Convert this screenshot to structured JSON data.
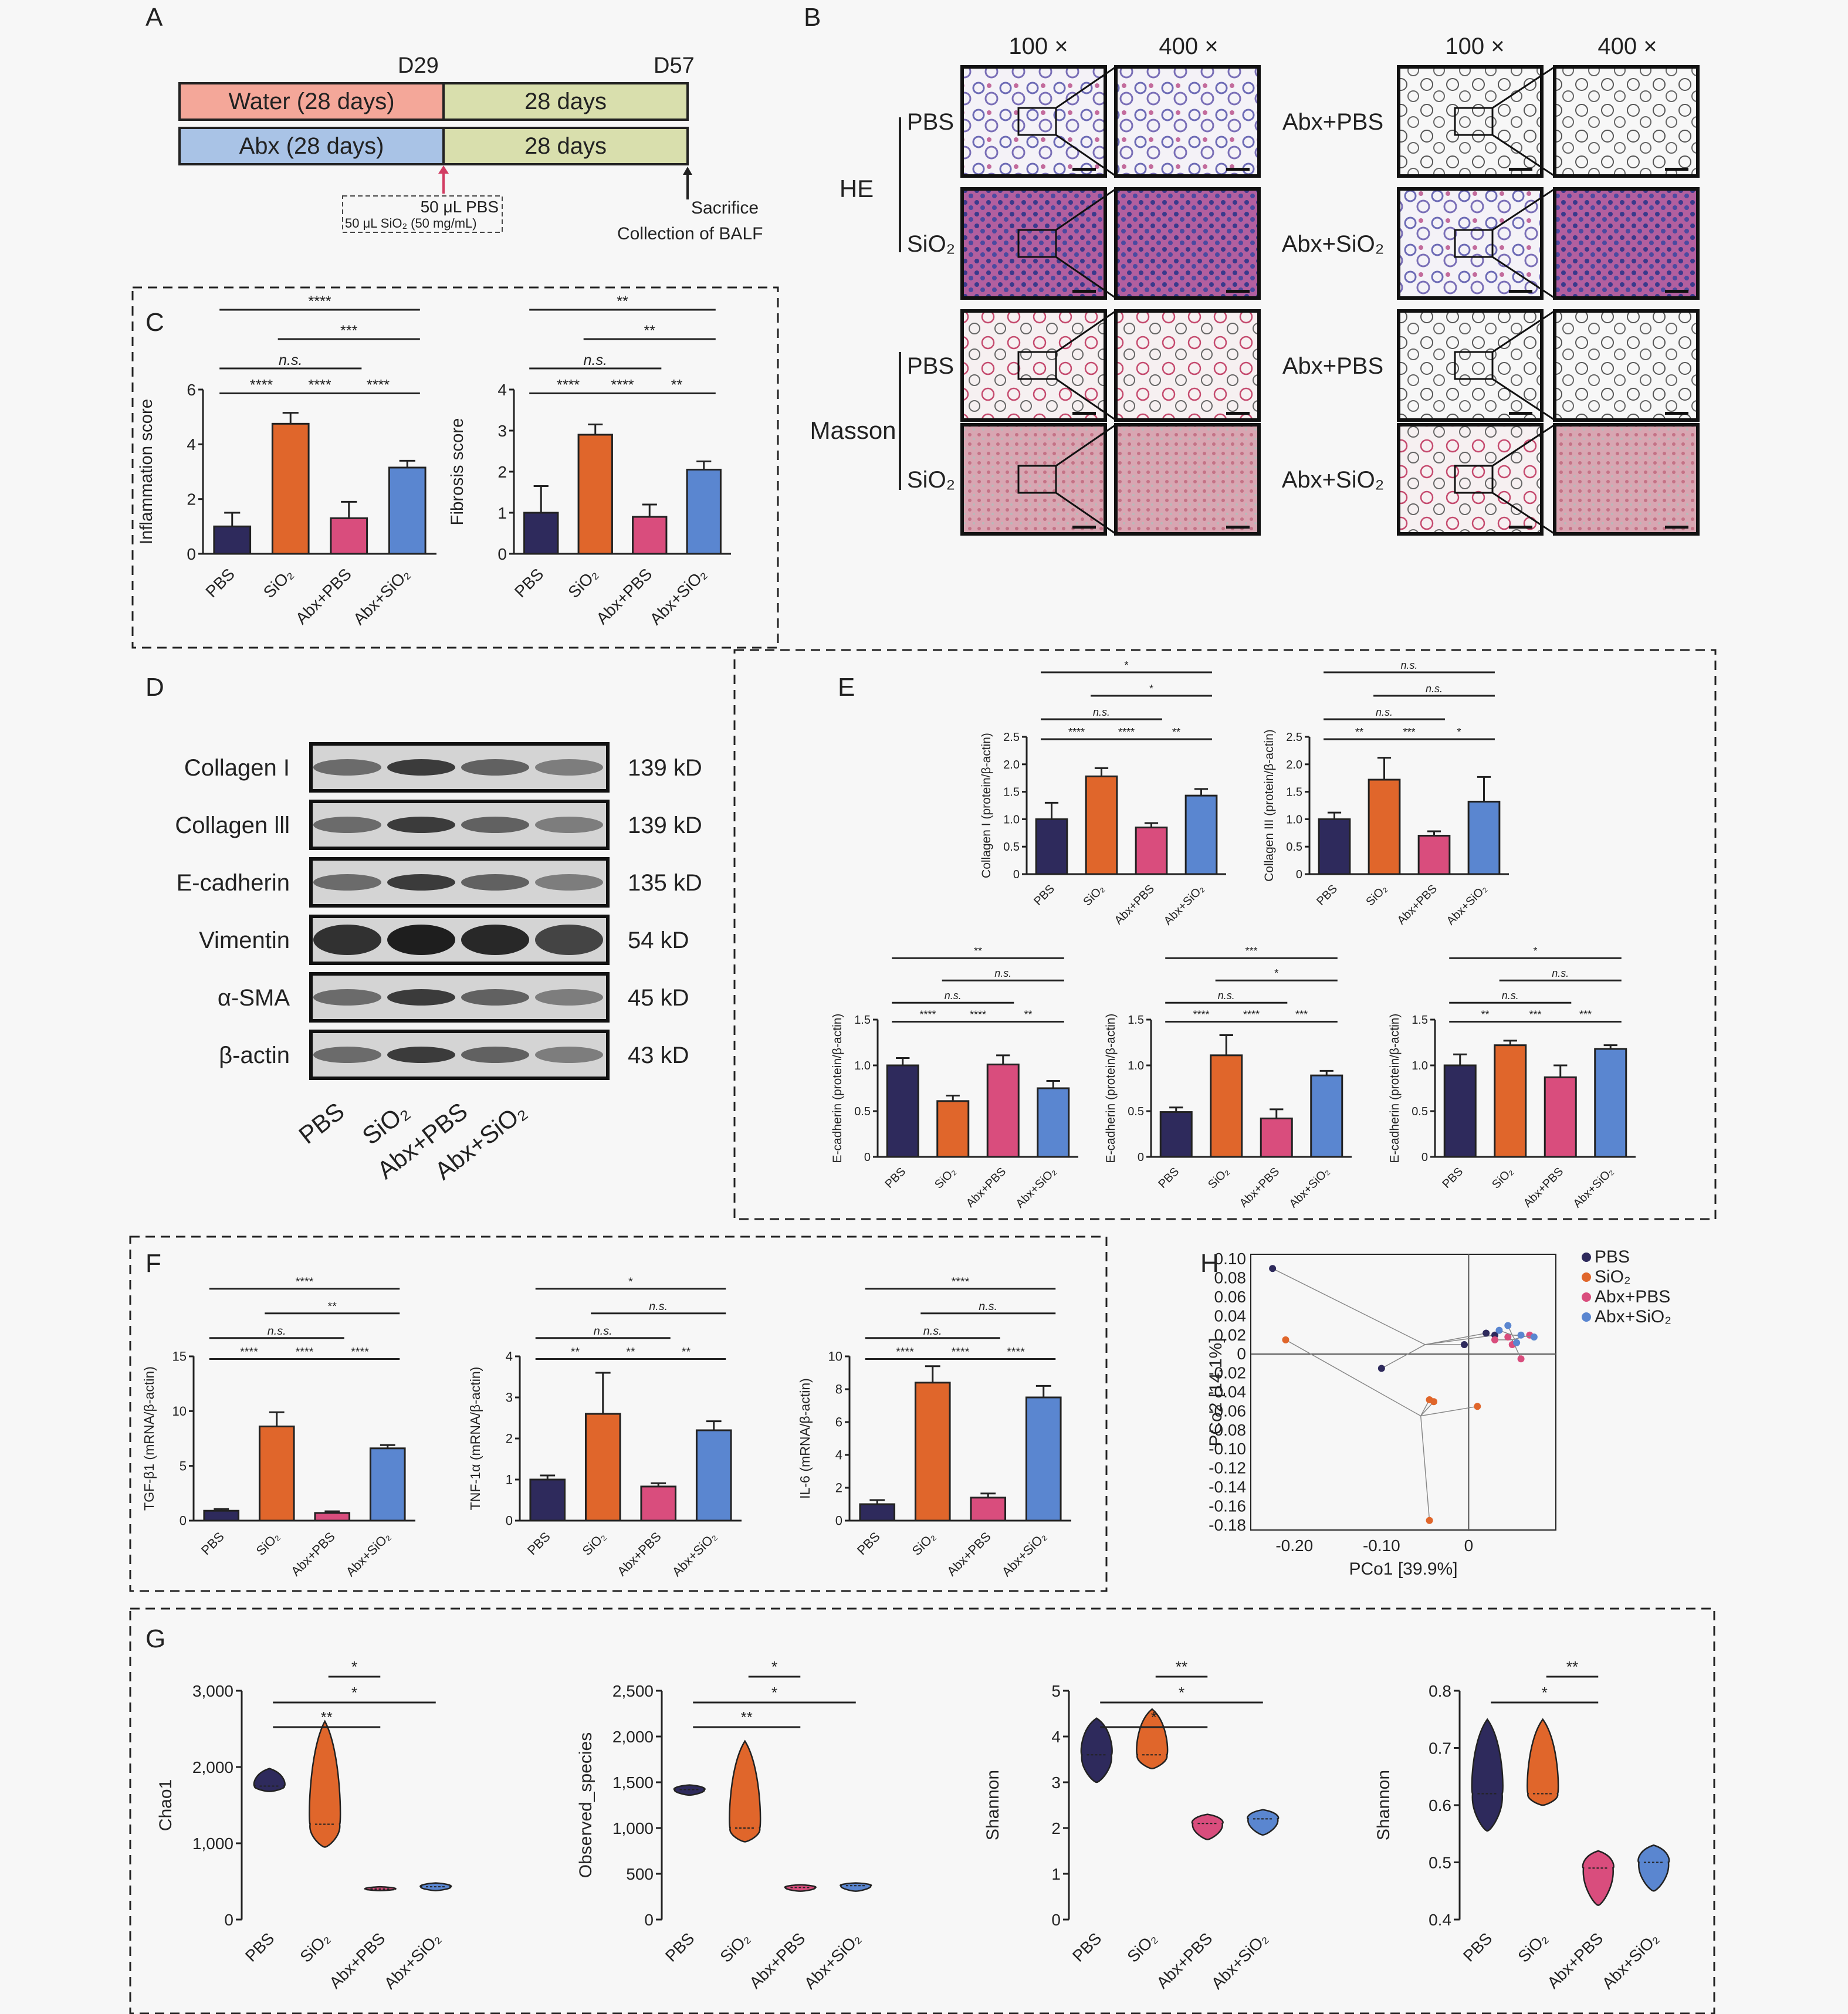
{
  "panel_letters": [
    "A",
    "B",
    "C",
    "D",
    "E",
    "F",
    "G",
    "H"
  ],
  "colors": {
    "pbs": "#2e2a5c",
    "sio2": "#e0662b",
    "abx_pbs": "#d94d7d",
    "abx_sio2": "#5a86d0",
    "water": "#f4a799",
    "abx": "#a9c3e6",
    "days": "#d9dfad",
    "arrow_red": "#d23c62"
  },
  "panelA": {
    "d29": "D29",
    "d57": "D57",
    "water": "Water (28 days)",
    "abx": "Abx (28 days)",
    "days1": "28 days",
    "days2": "28 days",
    "pbs_dose": "50 μL PBS",
    "sio2_dose": "50 μL SiO₂ (50 mg/mL)",
    "sacrifice": "Sacrifice",
    "balf": "Collection of BALF"
  },
  "panelB": {
    "mag_left_100": "100 ×",
    "mag_left_400": "400 ×",
    "mag_right_100": "100 ×",
    "mag_right_400": "400 ×",
    "stain_he": "HE",
    "stain_masson": "Masson",
    "rows": [
      {
        "left": "PBS",
        "right": "Abx+PBS"
      },
      {
        "left": "SiO₂",
        "right": "Abx+SiO₂"
      },
      {
        "left": "PBS",
        "right": "Abx+PBS"
      },
      {
        "left": "SiO₂",
        "right": "Abx+SiO₂"
      }
    ]
  },
  "panelD": {
    "bands": [
      {
        "name": "Collagen I",
        "kd": "139 kD"
      },
      {
        "name": "Collagen lll",
        "kd": "139 kD"
      },
      {
        "name": "E-cadherin",
        "kd": "135 kD"
      },
      {
        "name": "Vimentin",
        "kd": "54 kD"
      },
      {
        "name": "α-SMA",
        "kd": "45 kD"
      },
      {
        "name": "β-actin",
        "kd": "43 kD"
      }
    ],
    "lanes": [
      "PBS",
      "SiO₂",
      "Abx+PBS",
      "Abx+SiO₂"
    ]
  },
  "chart_data": [
    {
      "id": "C1",
      "type": "bar",
      "categories": [
        "PBS",
        "SiO₂",
        "Abx+PBS",
        "Abx+SiO₂"
      ],
      "values": [
        1.0,
        4.75,
        1.3,
        3.15
      ],
      "errors": [
        0.5,
        0.4,
        0.6,
        0.25
      ],
      "ylabel": "Inflammation score",
      "ylim": [
        0,
        6
      ],
      "yticks": [
        "0",
        "2",
        "4",
        "6"
      ],
      "sig": [
        "****",
        "n.s.",
        "***",
        "****",
        "****",
        "****",
        "****"
      ]
    },
    {
      "id": "C2",
      "type": "bar",
      "categories": [
        "PBS",
        "SiO₂",
        "Abx+PBS",
        "Abx+SiO₂"
      ],
      "values": [
        1.0,
        2.9,
        0.9,
        2.05
      ],
      "errors": [
        0.65,
        0.25,
        0.3,
        0.2
      ],
      "ylabel": "Fibrosis score",
      "ylim": [
        0,
        4
      ],
      "yticks": [
        "0",
        "1",
        "2",
        "3",
        "4"
      ],
      "sig": [
        "**",
        "**",
        "n.s.",
        "****",
        "****",
        "**"
      ]
    },
    {
      "id": "E1",
      "type": "bar",
      "categories": [
        "PBS",
        "SiO₂",
        "Abx+PBS",
        "Abx+SiO₂"
      ],
      "values": [
        1.0,
        1.78,
        0.85,
        1.43
      ],
      "errors": [
        0.3,
        0.15,
        0.08,
        0.12
      ],
      "ylabel": "Collagen I (protein/β-actin)",
      "ylim": [
        0,
        2.5
      ],
      "yticks": [
        "0",
        "0.5",
        "1.0",
        "1.5",
        "2.0",
        "2.5"
      ],
      "sig": [
        "*",
        "*",
        "n.s.",
        "****",
        "****",
        "**"
      ]
    },
    {
      "id": "E2",
      "type": "bar",
      "categories": [
        "PBS",
        "SiO₂",
        "Abx+PBS",
        "Abx+SiO₂"
      ],
      "values": [
        1.0,
        1.72,
        0.7,
        1.32
      ],
      "errors": [
        0.12,
        0.4,
        0.08,
        0.45
      ],
      "ylabel": "Collagen III (protein/β-actin)",
      "ylim": [
        0,
        2.5
      ],
      "yticks": [
        "0",
        "0.5",
        "1.0",
        "1.5",
        "2.0",
        "2.5"
      ],
      "sig": [
        "n.s.",
        "n.s.",
        "n.s.",
        "**",
        "***",
        "*"
      ]
    },
    {
      "id": "E3",
      "type": "bar",
      "categories": [
        "PBS",
        "SiO₂",
        "Abx+PBS",
        "Abx+SiO₂"
      ],
      "values": [
        1.0,
        0.61,
        1.01,
        0.75
      ],
      "errors": [
        0.08,
        0.06,
        0.1,
        0.08
      ],
      "ylabel": "E-cadherin (protein/β-actin)",
      "ylim": [
        0,
        1.5
      ],
      "yticks": [
        "0",
        "0.5",
        "1.0",
        "1.5"
      ],
      "sig": [
        "**",
        "n.s.",
        "n.s.",
        "****",
        "****",
        "**"
      ]
    },
    {
      "id": "E4",
      "type": "bar",
      "categories": [
        "PBS",
        "SiO₂",
        "Abx+PBS",
        "Abx+SiO₂"
      ],
      "values": [
        0.49,
        1.11,
        0.42,
        0.89
      ],
      "errors": [
        0.05,
        0.22,
        0.1,
        0.05
      ],
      "ylabel": "E-cadherin (protein/β-actin)",
      "ylim": [
        0,
        1.5
      ],
      "yticks": [
        "0",
        "0.5",
        "1.0",
        "1.5"
      ],
      "sig": [
        "***",
        "*",
        "n.s.",
        "****",
        "****",
        "***"
      ]
    },
    {
      "id": "E5",
      "type": "bar",
      "categories": [
        "PBS",
        "SiO₂",
        "Abx+PBS",
        "Abx+SiO₂"
      ],
      "values": [
        1.0,
        1.22,
        0.87,
        1.18
      ],
      "errors": [
        0.12,
        0.05,
        0.13,
        0.04
      ],
      "ylabel": "E-cadherin (protein/β-actin)",
      "ylim": [
        0,
        1.5
      ],
      "yticks": [
        "0",
        "0.5",
        "1.0",
        "1.5"
      ],
      "sig": [
        "*",
        "n.s.",
        "n.s.",
        "**",
        "***",
        "***"
      ]
    },
    {
      "id": "F1",
      "type": "bar",
      "categories": [
        "PBS",
        "SiO₂",
        "Abx+PBS",
        "Abx+SiO₂"
      ],
      "values": [
        0.9,
        8.6,
        0.7,
        6.6
      ],
      "errors": [
        0.15,
        1.3,
        0.15,
        0.3
      ],
      "ylabel": "TGF-β1 (mRNA/β-actin)",
      "ylim": [
        0,
        15
      ],
      "yticks": [
        "0",
        "5",
        "10",
        "15"
      ],
      "sig": [
        "****",
        "**",
        "n.s.",
        "****",
        "****",
        "****"
      ]
    },
    {
      "id": "F2",
      "type": "bar",
      "categories": [
        "PBS",
        "SiO₂",
        "Abx+PBS",
        "Abx+SiO₂"
      ],
      "values": [
        1.0,
        2.6,
        0.83,
        2.2
      ],
      "errors": [
        0.1,
        1.0,
        0.08,
        0.22
      ],
      "ylabel": "TNF-1α (mRNA/β-actin)",
      "ylim": [
        0,
        4
      ],
      "yticks": [
        "0",
        "1",
        "2",
        "3",
        "4"
      ],
      "sig": [
        "*",
        "n.s.",
        "n.s.",
        "**",
        "**",
        "**"
      ]
    },
    {
      "id": "F3",
      "type": "bar",
      "categories": [
        "PBS",
        "SiO₂",
        "Abx+PBS",
        "Abx+SiO₂"
      ],
      "values": [
        1.0,
        8.4,
        1.4,
        7.5
      ],
      "errors": [
        0.25,
        1.0,
        0.25,
        0.7
      ],
      "ylabel": "IL-6 (mRNA/β-actin)",
      "ylim": [
        0,
        10
      ],
      "yticks": [
        "0",
        "2",
        "4",
        "6",
        "8",
        "10"
      ],
      "sig": [
        "****",
        "n.s.",
        "n.s.",
        "****",
        "****",
        "****"
      ]
    },
    {
      "id": "H",
      "type": "scatter",
      "xlabel": "PCo1 [39.9%]",
      "ylabel": "PCo2 [14.1%]",
      "xlim": [
        -0.25,
        0.1
      ],
      "ylim": [
        -0.185,
        0.105
      ],
      "xticks": [
        "-0.20",
        "-0.10",
        "0"
      ],
      "yticks": [
        "0.10",
        "0.08",
        "0.06",
        "0.04",
        "0.02",
        "0",
        "-0.02",
        "-0.04",
        "-0.06",
        "-0.08",
        "-0.10",
        "-0.12",
        "-0.14",
        "-0.16",
        "-0.18"
      ],
      "series": [
        {
          "name": "PBS",
          "color": "#2e2a5c",
          "centroid": [
            -0.05,
            0.01
          ],
          "points": [
            [
              -0.225,
              0.09
            ],
            [
              -0.1,
              -0.015
            ],
            [
              -0.005,
              0.01
            ],
            [
              0.02,
              0.022
            ],
            [
              0.03,
              0.02
            ]
          ]
        },
        {
          "name": "SiO₂",
          "color": "#e0662b",
          "centroid": [
            -0.055,
            -0.065
          ],
          "points": [
            [
              -0.21,
              0.015
            ],
            [
              -0.04,
              -0.05
            ],
            [
              -0.045,
              -0.048
            ],
            [
              0.01,
              -0.055
            ],
            [
              -0.045,
              -0.175
            ]
          ]
        },
        {
          "name": "Abx+PBS",
          "color": "#d94d7d",
          "centroid": [
            0.05,
            0.015
          ],
          "points": [
            [
              0.045,
              0.018
            ],
            [
              0.05,
              0.01
            ],
            [
              0.06,
              -0.005
            ],
            [
              0.07,
              0.02
            ],
            [
              0.03,
              0.015
            ]
          ]
        },
        {
          "name": "Abx+SiO₂",
          "color": "#5a86d0",
          "centroid": [
            0.05,
            0.02
          ],
          "points": [
            [
              0.035,
              0.025
            ],
            [
              0.045,
              0.03
            ],
            [
              0.06,
              0.02
            ],
            [
              0.075,
              0.018
            ],
            [
              0.055,
              0.012
            ]
          ]
        }
      ]
    },
    {
      "id": "G1",
      "type": "violin",
      "categories": [
        "PBS",
        "SiO₂",
        "Abx+PBS",
        "Abx+SiO₂"
      ],
      "ylabel": "Chao1",
      "ylim": [
        0,
        3000
      ],
      "yticks": [
        "0",
        "1,000",
        "2,000",
        "3,000"
      ],
      "ranges": [
        [
          1680,
          1980
        ],
        [
          950,
          2600
        ],
        [
          380,
          430
        ],
        [
          380,
          480
        ]
      ],
      "medians": [
        1750,
        1250,
        400,
        430
      ],
      "sig": [
        "*",
        "*",
        "**"
      ]
    },
    {
      "id": "G2",
      "type": "violin",
      "categories": [
        "PBS",
        "SiO₂",
        "Abx+PBS",
        "Abx+SiO₂"
      ],
      "ylabel": "Observed_species",
      "ylim": [
        0,
        2500
      ],
      "yticks": [
        "0",
        "500",
        "1,000",
        "1,500",
        "2,000",
        "2,500"
      ],
      "ranges": [
        [
          1360,
          1470
        ],
        [
          850,
          1950
        ],
        [
          310,
          380
        ],
        [
          310,
          400
        ]
      ],
      "medians": [
        1420,
        1000,
        350,
        370
      ],
      "sig": [
        "*",
        "*",
        "**"
      ]
    },
    {
      "id": "G3",
      "type": "violin",
      "categories": [
        "PBS",
        "SiO₂",
        "Abx+PBS",
        "Abx+SiO₂"
      ],
      "ylabel": "Shannon",
      "ylim": [
        0,
        5
      ],
      "yticks": [
        "0",
        "1",
        "2",
        "3",
        "4",
        "5"
      ],
      "ranges": [
        [
          3.0,
          4.4
        ],
        [
          3.3,
          4.6
        ],
        [
          1.75,
          2.3
        ],
        [
          1.85,
          2.4
        ]
      ],
      "medians": [
        3.6,
        3.6,
        2.1,
        2.2
      ],
      "sig": [
        "**",
        "*",
        "*"
      ]
    },
    {
      "id": "G4",
      "type": "violin",
      "categories": [
        "PBS",
        "SiO₂",
        "Abx+PBS",
        "Abx+SiO₂"
      ],
      "ylabel": "Shannon",
      "ylim": [
        0.4,
        0.8
      ],
      "yticks": [
        "0.4",
        "0.5",
        "0.6",
        "0.7",
        "0.8"
      ],
      "ranges": [
        [
          0.555,
          0.75
        ],
        [
          0.6,
          0.75
        ],
        [
          0.425,
          0.52
        ],
        [
          0.45,
          0.53
        ]
      ],
      "medians": [
        0.62,
        0.62,
        0.49,
        0.5
      ],
      "sig": [
        "**",
        "*"
      ]
    }
  ]
}
